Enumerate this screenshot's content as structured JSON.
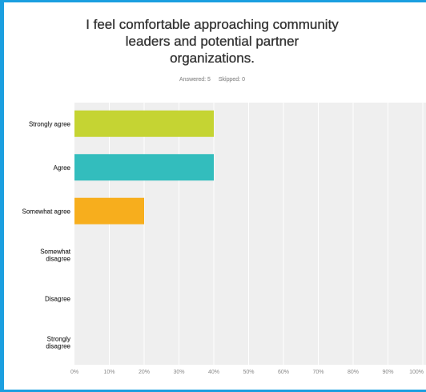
{
  "header": {
    "title_lines": [
      "I feel comfortable approaching community",
      "leaders and potential partner",
      "organizations."
    ],
    "answered_label": "Answered: 5",
    "skipped_label": "Skipped: 0"
  },
  "colors": {
    "frame_border": "#1b9fe0",
    "plot_background": "#efefef",
    "grid": "#ffffff"
  },
  "chart_data": {
    "type": "bar",
    "orientation": "horizontal",
    "title": "I feel comfortable approaching community leaders and potential partner organizations.",
    "categories": [
      [
        "Strongly agree"
      ],
      [
        "Agree"
      ],
      [
        "Somewhat agree"
      ],
      [
        "Somewhat",
        "disagree"
      ],
      [
        "Disagree"
      ],
      [
        "Strongly",
        "disagree"
      ]
    ],
    "values": [
      40,
      40,
      20,
      0,
      0,
      0
    ],
    "bar_colors": [
      "#c5d433",
      "#33bdbd",
      "#f7ae1d",
      "#8bbf4b",
      "#66b2e0",
      "#e0703c"
    ],
    "xlim": [
      0,
      100
    ],
    "x_ticks": [
      "0%",
      "10%",
      "20%",
      "30%",
      "40%",
      "50%",
      "60%",
      "70%",
      "80%",
      "90%",
      "100%"
    ],
    "grid": true
  }
}
